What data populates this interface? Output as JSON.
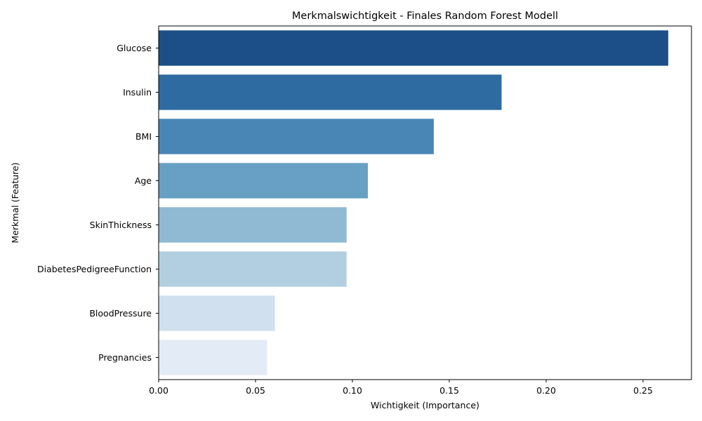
{
  "chart_data": {
    "type": "bar",
    "orientation": "horizontal",
    "title": "Merkmalswichtigkeit - Finales Random Forest Modell",
    "xlabel": "Wichtigkeit (Importance)",
    "ylabel": "Merkmal (Feature)",
    "xlim": [
      0,
      0.275
    ],
    "xticks": [
      0.0,
      0.05,
      0.1,
      0.15,
      0.2,
      0.25
    ],
    "xtick_labels": [
      "0.00",
      "0.05",
      "0.10",
      "0.15",
      "0.20",
      "0.25"
    ],
    "grid": false,
    "categories": [
      "Glucose",
      "Insulin",
      "BMI",
      "Age",
      "SkinThickness",
      "DiabetesPedigreeFunction",
      "BloodPressure",
      "Pregnancies"
    ],
    "values": [
      0.263,
      0.177,
      0.142,
      0.108,
      0.097,
      0.097,
      0.06,
      0.056
    ],
    "colors": [
      "#1c4f88",
      "#2d6ba1",
      "#4986b6",
      "#67a0c4",
      "#90b9d3",
      "#b2cfe1",
      "#d0e0ee",
      "#e3ecf6"
    ]
  }
}
